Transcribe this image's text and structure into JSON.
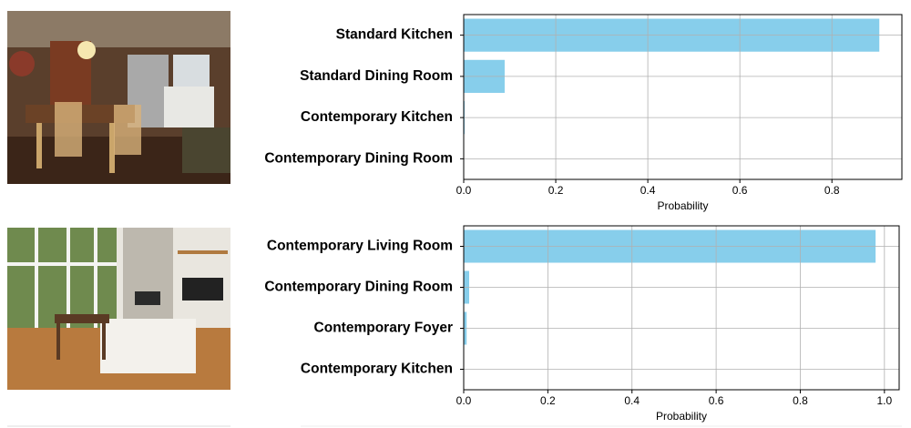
{
  "chart_data": [
    {
      "type": "barh",
      "categories": [
        "Standard Kitchen",
        "Standard Dining Room",
        "Contemporary Kitchen",
        "Contemporary Dining Room"
      ],
      "values": [
        0.903,
        0.089,
        0.002,
        0.001
      ],
      "color": "#87ceeb",
      "xlabel": "Probability",
      "xlim": [
        0,
        0.952
      ],
      "xticks": [
        {
          "value": 0,
          "label": "0.0"
        },
        0.2,
        0.4,
        0.6,
        0.8
      ],
      "grid": true
    },
    {
      "type": "barh",
      "categories": [
        "Contemporary Living Room",
        "Contemporary Dining Room",
        "Contemporary Foyer",
        "Contemporary Kitchen"
      ],
      "values": [
        0.979,
        0.013,
        0.007,
        0.001
      ],
      "color": "#87ceeb",
      "xlabel": "Probability",
      "xlim": [
        0,
        1.035
      ],
      "xticks": [
        {
          "value": 0,
          "label": "0.0"
        },
        0.2,
        0.4,
        0.6,
        0.8,
        {
          "value": 1,
          "label": "1.0"
        }
      ],
      "grid": true
    }
  ]
}
